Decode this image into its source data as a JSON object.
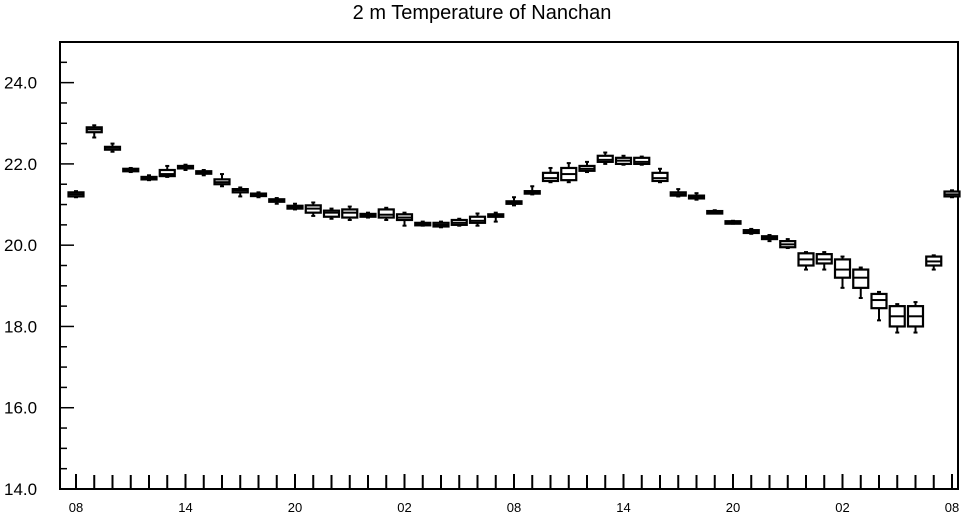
{
  "chart_data": {
    "type": "box",
    "title": "2 m Temperature of Nanchan",
    "xlabel": "",
    "ylabel": "",
    "ylim": [
      14,
      25
    ],
    "yticks": [
      14,
      16,
      18,
      20,
      22,
      24
    ],
    "ytick_labels": [
      "14.0",
      "16.0",
      "18.0",
      "20.0",
      "22.0",
      "24.0"
    ],
    "xtick_labels": [
      "08",
      "14",
      "20",
      "02",
      "08",
      "14",
      "20",
      "02",
      "08"
    ],
    "xtick_hours": [
      0,
      6,
      12,
      18,
      24,
      30,
      36,
      42,
      48
    ],
    "grid": false,
    "series": [
      {
        "boxes": [
          {
            "hour": 0,
            "min": 21.18,
            "q1": 21.2,
            "median": 21.25,
            "q3": 21.3,
            "max": 21.33
          },
          {
            "hour": 1,
            "min": 22.65,
            "q1": 22.78,
            "median": 22.85,
            "q3": 22.9,
            "max": 22.95
          },
          {
            "hour": 2,
            "min": 22.3,
            "q1": 22.35,
            "median": 22.4,
            "q3": 22.42,
            "max": 22.5
          },
          {
            "hour": 3,
            "min": 21.8,
            "q1": 21.82,
            "median": 21.85,
            "q3": 21.88,
            "max": 21.9
          },
          {
            "hour": 4,
            "min": 21.6,
            "q1": 21.62,
            "median": 21.65,
            "q3": 21.68,
            "max": 21.72
          },
          {
            "hour": 5,
            "min": 21.68,
            "q1": 21.7,
            "median": 21.75,
            "q3": 21.85,
            "max": 21.95
          },
          {
            "hour": 6,
            "min": 21.85,
            "q1": 21.9,
            "median": 21.93,
            "q3": 21.95,
            "max": 21.98
          },
          {
            "hour": 7,
            "min": 21.72,
            "q1": 21.78,
            "median": 21.8,
            "q3": 21.82,
            "max": 21.85
          },
          {
            "hour": 8,
            "min": 21.45,
            "q1": 21.5,
            "median": 21.55,
            "q3": 21.62,
            "max": 21.75
          },
          {
            "hour": 9,
            "min": 21.2,
            "q1": 21.3,
            "median": 21.35,
            "q3": 21.38,
            "max": 21.42
          },
          {
            "hour": 10,
            "min": 21.18,
            "q1": 21.22,
            "median": 21.25,
            "q3": 21.27,
            "max": 21.3
          },
          {
            "hour": 11,
            "min": 21.02,
            "q1": 21.08,
            "median": 21.1,
            "q3": 21.13,
            "max": 21.16
          },
          {
            "hour": 12,
            "min": 20.88,
            "q1": 20.9,
            "median": 20.93,
            "q3": 20.97,
            "max": 21.02
          },
          {
            "hour": 13,
            "min": 20.72,
            "q1": 20.8,
            "median": 20.9,
            "q3": 20.98,
            "max": 21.05
          },
          {
            "hour": 14,
            "min": 20.65,
            "q1": 20.7,
            "median": 20.8,
            "q3": 20.85,
            "max": 20.9
          },
          {
            "hour": 15,
            "min": 20.62,
            "q1": 20.68,
            "median": 20.8,
            "q3": 20.88,
            "max": 20.95
          },
          {
            "hour": 16,
            "min": 20.68,
            "q1": 20.7,
            "median": 20.73,
            "q3": 20.77,
            "max": 20.8
          },
          {
            "hour": 17,
            "min": 20.62,
            "q1": 20.68,
            "median": 20.75,
            "q3": 20.88,
            "max": 20.92
          },
          {
            "hour": 18,
            "min": 20.48,
            "q1": 20.62,
            "median": 20.68,
            "q3": 20.76,
            "max": 20.8
          },
          {
            "hour": 19,
            "min": 20.48,
            "q1": 20.5,
            "median": 20.52,
            "q3": 20.55,
            "max": 20.58
          },
          {
            "hour": 20,
            "min": 20.44,
            "q1": 20.46,
            "median": 20.5,
            "q3": 20.55,
            "max": 20.58
          },
          {
            "hour": 21,
            "min": 20.48,
            "q1": 20.5,
            "median": 20.55,
            "q3": 20.62,
            "max": 20.65
          },
          {
            "hour": 22,
            "min": 20.48,
            "q1": 20.55,
            "median": 20.6,
            "q3": 20.7,
            "max": 20.78
          },
          {
            "hour": 23,
            "min": 20.58,
            "q1": 20.7,
            "median": 20.73,
            "q3": 20.76,
            "max": 20.8
          },
          {
            "hour": 24,
            "min": 20.98,
            "q1": 21.02,
            "median": 21.05,
            "q3": 21.08,
            "max": 21.18
          },
          {
            "hour": 25,
            "min": 21.25,
            "q1": 21.28,
            "median": 21.3,
            "q3": 21.33,
            "max": 21.45
          },
          {
            "hour": 26,
            "min": 21.55,
            "q1": 21.58,
            "median": 21.65,
            "q3": 21.78,
            "max": 21.9
          },
          {
            "hour": 27,
            "min": 21.55,
            "q1": 21.6,
            "median": 21.75,
            "q3": 21.9,
            "max": 22.02
          },
          {
            "hour": 28,
            "min": 21.8,
            "q1": 21.83,
            "median": 21.88,
            "q3": 21.95,
            "max": 22.05
          },
          {
            "hour": 29,
            "min": 22.0,
            "q1": 22.05,
            "median": 22.1,
            "q3": 22.2,
            "max": 22.28
          },
          {
            "hour": 30,
            "min": 21.98,
            "q1": 22.0,
            "median": 22.08,
            "q3": 22.15,
            "max": 22.2
          },
          {
            "hour": 31,
            "min": 21.98,
            "q1": 22.0,
            "median": 22.05,
            "q3": 22.15,
            "max": 22.18
          },
          {
            "hour": 32,
            "min": 21.55,
            "q1": 21.58,
            "median": 21.65,
            "q3": 21.78,
            "max": 21.88
          },
          {
            "hour": 33,
            "min": 21.2,
            "q1": 21.22,
            "median": 21.25,
            "q3": 21.3,
            "max": 21.38
          },
          {
            "hour": 34,
            "min": 21.12,
            "q1": 21.15,
            "median": 21.18,
            "q3": 21.22,
            "max": 21.28
          },
          {
            "hour": 35,
            "min": 20.78,
            "q1": 20.8,
            "median": 20.82,
            "q3": 20.84,
            "max": 20.86
          },
          {
            "hour": 36,
            "min": 20.53,
            "q1": 20.55,
            "median": 20.57,
            "q3": 20.59,
            "max": 20.6
          },
          {
            "hour": 37,
            "min": 20.28,
            "q1": 20.3,
            "median": 20.33,
            "q3": 20.37,
            "max": 20.4
          },
          {
            "hour": 38,
            "min": 20.1,
            "q1": 20.15,
            "median": 20.18,
            "q3": 20.22,
            "max": 20.25
          },
          {
            "hour": 39,
            "min": 19.93,
            "q1": 19.95,
            "median": 20.02,
            "q3": 20.1,
            "max": 20.15
          },
          {
            "hour": 40,
            "min": 19.4,
            "q1": 19.5,
            "median": 19.65,
            "q3": 19.8,
            "max": 19.83
          },
          {
            "hour": 41,
            "min": 19.4,
            "q1": 19.55,
            "median": 19.65,
            "q3": 19.78,
            "max": 19.83
          },
          {
            "hour": 42,
            "min": 18.95,
            "q1": 19.2,
            "median": 19.4,
            "q3": 19.65,
            "max": 19.72
          },
          {
            "hour": 43,
            "min": 18.7,
            "q1": 18.95,
            "median": 19.2,
            "q3": 19.4,
            "max": 19.45
          },
          {
            "hour": 44,
            "min": 18.15,
            "q1": 18.45,
            "median": 18.65,
            "q3": 18.8,
            "max": 18.85
          },
          {
            "hour": 45,
            "min": 17.85,
            "q1": 18.0,
            "median": 18.25,
            "q3": 18.5,
            "max": 18.55
          },
          {
            "hour": 46,
            "min": 17.85,
            "q1": 18.0,
            "median": 18.25,
            "q3": 18.5,
            "max": 18.6
          },
          {
            "hour": 47,
            "min": 19.4,
            "q1": 19.5,
            "median": 19.6,
            "q3": 19.72,
            "max": 19.75
          },
          {
            "hour": 48,
            "min": 21.18,
            "q1": 21.2,
            "median": 21.25,
            "q3": 21.32,
            "max": 21.35
          }
        ]
      }
    ],
    "colors": {
      "box": "#000000",
      "axis": "#000000"
    }
  }
}
